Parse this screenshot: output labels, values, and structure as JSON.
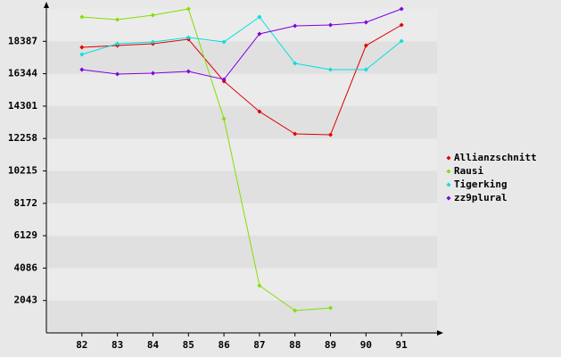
{
  "chart_data": {
    "type": "line",
    "x": [
      82,
      83,
      84,
      85,
      86,
      87,
      88,
      89,
      90,
      91
    ],
    "xlim": [
      81,
      92
    ],
    "xticks": [
      82,
      83,
      84,
      85,
      86,
      87,
      88,
      89,
      90,
      91
    ],
    "ylim": [
      0,
      20430
    ],
    "yticks": [
      2043,
      4086,
      6129,
      8172,
      10215,
      12258,
      14301,
      16344,
      18387
    ],
    "legend": "right",
    "series": [
      {
        "name": "Allianzschnitt",
        "color": "#e00000",
        "values": [
          18010,
          18122,
          18235,
          18516,
          15871,
          13957,
          12550,
          12494,
          18122,
          19417
        ]
      },
      {
        "name": "Rausi",
        "color": "#80e000",
        "values": [
          19923,
          19754,
          20036,
          20430,
          13507,
          2983,
          1407,
          1576,
          null,
          null
        ]
      },
      {
        "name": "Tigerking",
        "color": "#00e0e0",
        "values": [
          17559,
          18235,
          18347,
          18629,
          18347,
          19923,
          16997,
          16603,
          16603,
          18404
        ]
      },
      {
        "name": "zz9plural",
        "color": "#8000e0",
        "values": [
          16603,
          16322,
          16378,
          16491,
          15984,
          18854,
          19360,
          19417,
          19585,
          20430
        ]
      }
    ]
  }
}
